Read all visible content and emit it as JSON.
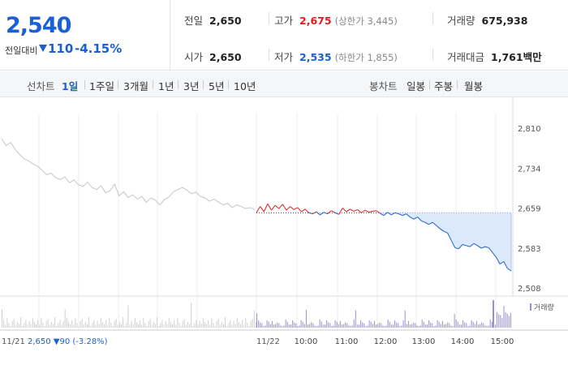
{
  "current": {
    "price": "2,540",
    "change_label": "전일대비",
    "change": "110",
    "rate": "-4.15%"
  },
  "stats": {
    "prev_close": {
      "label": "전일",
      "value": "2,650"
    },
    "high": {
      "label": "고가",
      "value": "2,675",
      "limit_label": "(상한가 3,445)"
    },
    "volume": {
      "label": "거래량",
      "value": "675,938"
    },
    "open": {
      "label": "시가",
      "value": "2,650"
    },
    "low": {
      "label": "저가",
      "value": "2,535",
      "limit_label": "(하한가 1,855)"
    },
    "amount": {
      "label": "거래대금",
      "value": "1,761",
      "unit": "백만"
    }
  },
  "line_chart_label": "선차트",
  "line_tabs": [
    "1일",
    "1주일",
    "3개월",
    "1년",
    "3년",
    "5년",
    "10년"
  ],
  "active_line_tab": "1일",
  "candle_chart_label": "봉차트",
  "candle_tabs": [
    "일봉",
    "주봉",
    "월봉"
  ],
  "colors": {
    "accent": "#1a5fd8",
    "up": "#e11b22",
    "prev_line": "#c6c6c6",
    "volume": "#9a8fc8"
  },
  "chart_data": {
    "type": "line",
    "y_ticks": [
      "2,810",
      "2,734",
      "2,659",
      "2,583",
      "2,508"
    ],
    "y_tick_values": [
      2810,
      2734,
      2659,
      2583,
      2508
    ],
    "ylim": [
      2508,
      2810
    ],
    "reference_value": 2650,
    "prev_day": {
      "date": "11/21",
      "info": "2,650 ▼90 (-3.28%)",
      "values": [
        2790,
        2777,
        2783,
        2770,
        2760,
        2752,
        2748,
        2742,
        2738,
        2730,
        2722,
        2725,
        2716,
        2713,
        2718,
        2707,
        2712,
        2703,
        2700,
        2708,
        2698,
        2694,
        2701,
        2688,
        2692,
        2704,
        2682,
        2690,
        2679,
        2684,
        2676,
        2681,
        2670,
        2678,
        2674,
        2665,
        2675,
        2680,
        2690,
        2694,
        2698,
        2693,
        2686,
        2689,
        2681,
        2678,
        2672,
        2676,
        2670,
        2665,
        2668,
        2660,
        2665,
        2662,
        2658,
        2660,
        2656
      ]
    },
    "today": {
      "date": "11/22",
      "time_ticks": [
        "10:00",
        "11:00",
        "12:00",
        "13:00",
        "14:00",
        "15:00"
      ],
      "values": [
        2650,
        2662,
        2652,
        2667,
        2655,
        2664,
        2658,
        2666,
        2655,
        2662,
        2656,
        2660,
        2652,
        2657,
        2650,
        2648,
        2652,
        2646,
        2651,
        2648,
        2654,
        2650,
        2647,
        2659,
        2652,
        2657,
        2653,
        2656,
        2650,
        2655,
        2651,
        2653,
        2654,
        2649,
        2645,
        2651,
        2646,
        2650,
        2648,
        2645,
        2648,
        2642,
        2638,
        2642,
        2635,
        2632,
        2628,
        2632,
        2626,
        2620,
        2615,
        2612,
        2598,
        2584,
        2582,
        2590,
        2588,
        2586,
        2592,
        2588,
        2583,
        2586,
        2584,
        2575,
        2566,
        2553,
        2558,
        2545,
        2540
      ]
    },
    "volume_label": "거래량"
  }
}
